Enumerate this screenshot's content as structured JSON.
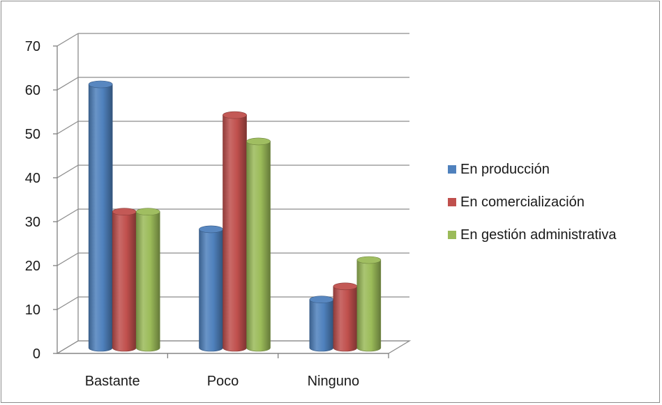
{
  "chart_data": {
    "type": "bar",
    "title": "",
    "xlabel": "",
    "ylabel": "",
    "categories": [
      "Bastante",
      "Poco",
      "Ninguno"
    ],
    "series": [
      {
        "name": "En producción",
        "values": [
          60,
          27,
          11
        ],
        "color": "#4f81bd"
      },
      {
        "name": "En comercialización",
        "values": [
          31,
          53,
          14
        ],
        "color": "#c0504d"
      },
      {
        "name": "En gestión administrativa",
        "values": [
          31,
          47,
          20
        ],
        "color": "#9bbb59"
      }
    ],
    "ylim": [
      0,
      70
    ],
    "yticks": [
      "0",
      "10",
      "20",
      "30",
      "40",
      "50",
      "60",
      "70"
    ],
    "grid": true,
    "legend_position": "right",
    "style": "3d-cylinder"
  }
}
